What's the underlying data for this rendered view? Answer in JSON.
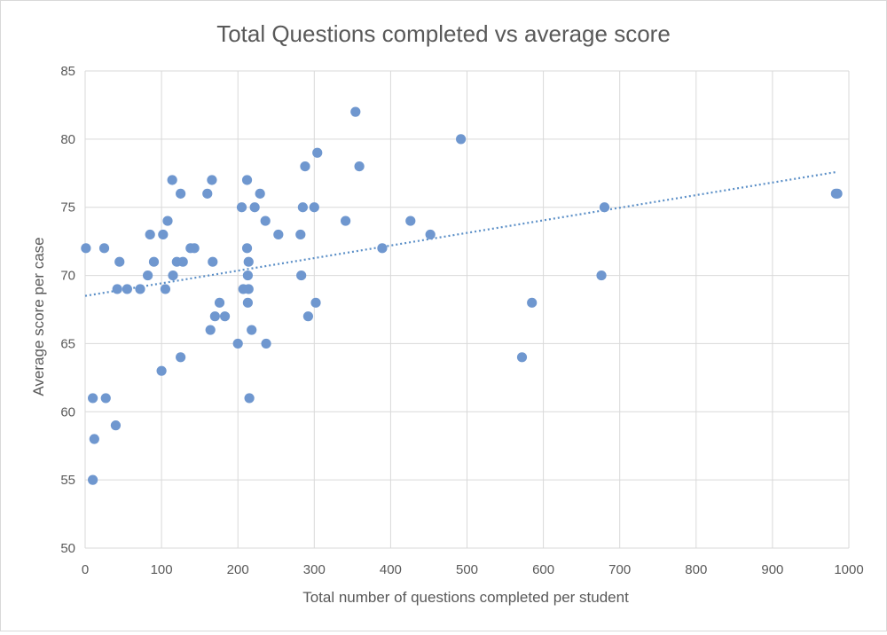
{
  "chart_data": {
    "type": "scatter",
    "title": "Total Questions completed vs average score",
    "xlabel": "Total number of questions completed per student",
    "ylabel": "Average score per case",
    "xlim": [
      0,
      1000
    ],
    "ylim": [
      50,
      85
    ],
    "xticks": [
      0,
      100,
      200,
      300,
      400,
      500,
      600,
      700,
      800,
      900,
      1000
    ],
    "yticks": [
      50,
      55,
      60,
      65,
      70,
      75,
      80,
      85
    ],
    "grid": true,
    "legend": "none",
    "colors": {
      "point": "#6f97cf",
      "trendline": "#5b8fc7",
      "grid": "#d9d9d9",
      "text": "#595959"
    },
    "trendline": {
      "type": "linear",
      "x": [
        0,
        985
      ],
      "y": [
        68.5,
        77.6
      ]
    },
    "series": [
      {
        "x": [
          1,
          10,
          10,
          12,
          25,
          27,
          40,
          42,
          45,
          55,
          72,
          82,
          85,
          90,
          100,
          102,
          105,
          108,
          114,
          115,
          120,
          125,
          125,
          128,
          138,
          143,
          160,
          164,
          166,
          167,
          170,
          176,
          183,
          200,
          205,
          207,
          212,
          212,
          213,
          213,
          214,
          214,
          215,
          218,
          222,
          229,
          236,
          237,
          253,
          282,
          283,
          285,
          288,
          292,
          300,
          302,
          304,
          341,
          354,
          359,
          389,
          426,
          452,
          492,
          572,
          585,
          676,
          680,
          983,
          985
        ],
        "y": [
          72,
          61,
          55,
          58,
          72,
          61,
          59,
          69,
          71,
          69,
          69,
          70,
          73,
          71,
          63,
          73,
          69,
          74,
          77,
          70,
          71,
          64,
          76,
          71,
          72,
          72,
          76,
          66,
          77,
          71,
          67,
          68,
          67,
          65,
          75,
          69,
          72,
          77,
          70,
          68,
          71,
          69,
          61,
          66,
          75,
          76,
          74,
          65,
          73,
          73,
          70,
          75,
          78,
          67,
          75,
          68,
          79,
          74,
          82,
          78,
          72,
          74,
          73,
          80,
          64,
          68,
          70,
          75,
          76,
          76
        ]
      }
    ]
  }
}
